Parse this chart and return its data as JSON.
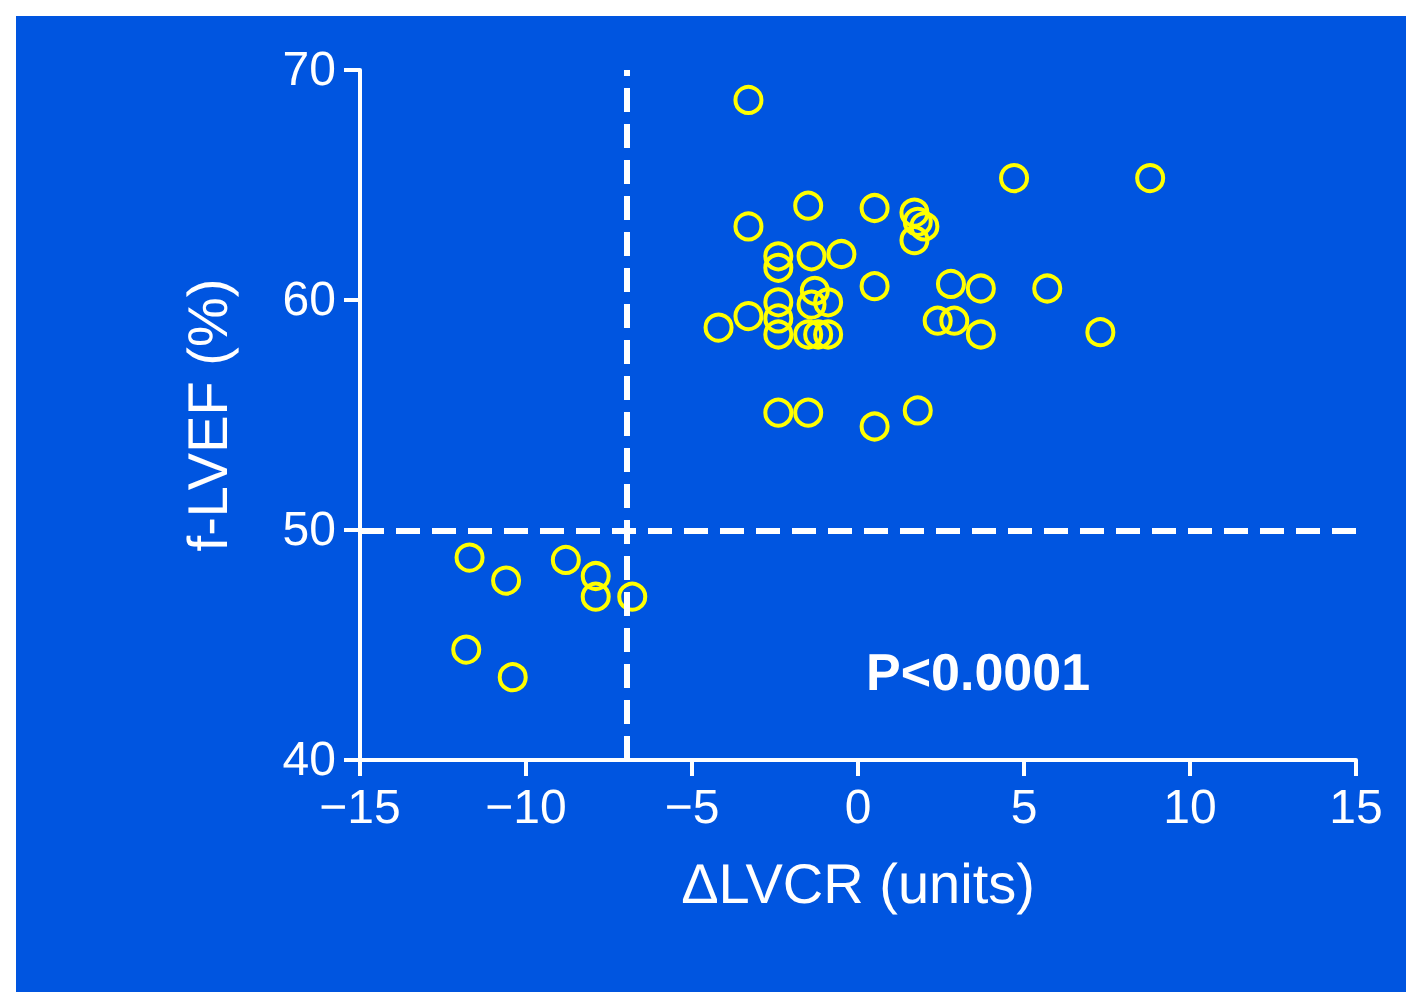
{
  "chart_data": {
    "type": "scatter",
    "xlabel": "ΔLVCR (units)",
    "ylabel": "f-LVEF (%)",
    "xlim": [
      -15,
      15
    ],
    "xticks": [
      -15,
      -10,
      -5,
      0,
      5,
      10,
      15
    ],
    "ylim": [
      40,
      70
    ],
    "yticks": [
      40,
      50,
      60,
      70
    ],
    "grid": false,
    "marker": "circle",
    "annotations": [
      "P<0.0001"
    ],
    "ref_lines": [
      {
        "axis": "x",
        "value": -7,
        "color": "#ffffff",
        "line_style": "dashed"
      },
      {
        "axis": "y",
        "value": 50,
        "color": "#ffffff",
        "line_style": "dashed"
      }
    ],
    "series": [
      {
        "color": "#ffff00",
        "x": [
          -3.3,
          4.7,
          8.8,
          -1.5,
          0.5,
          1.7,
          2.0,
          1.7,
          1.8,
          -3.3,
          -2.4,
          -2.4,
          -1.4,
          -0.5,
          0.5,
          2.8,
          3.7,
          5.7,
          -2.4,
          -1.3,
          -1.4,
          -0.9,
          -3.3,
          -2.4,
          -4.2,
          -2.4,
          -1.5,
          -1.2,
          -0.9,
          2.4,
          2.9,
          3.7,
          7.3,
          -2.4,
          -1.5,
          0.5,
          1.8,
          -11.7,
          -10.6,
          -8.8,
          -7.9,
          -7.9,
          -6.8,
          -11.8,
          -10.4
        ],
        "values": [
          68.7,
          65.3,
          65.3,
          64.1,
          64.0,
          63.8,
          63.2,
          62.6,
          63.4,
          63.2,
          61.9,
          61.4,
          61.9,
          62.0,
          60.6,
          60.7,
          60.5,
          60.5,
          59.9,
          60.4,
          59.8,
          59.9,
          59.3,
          59.2,
          58.8,
          58.5,
          58.5,
          58.5,
          58.5,
          59.1,
          59.1,
          58.5,
          58.6,
          55.1,
          55.1,
          54.5,
          55.2,
          48.8,
          47.8,
          48.7,
          48.0,
          47.1,
          47.1,
          44.8,
          43.6
        ]
      }
    ]
  }
}
